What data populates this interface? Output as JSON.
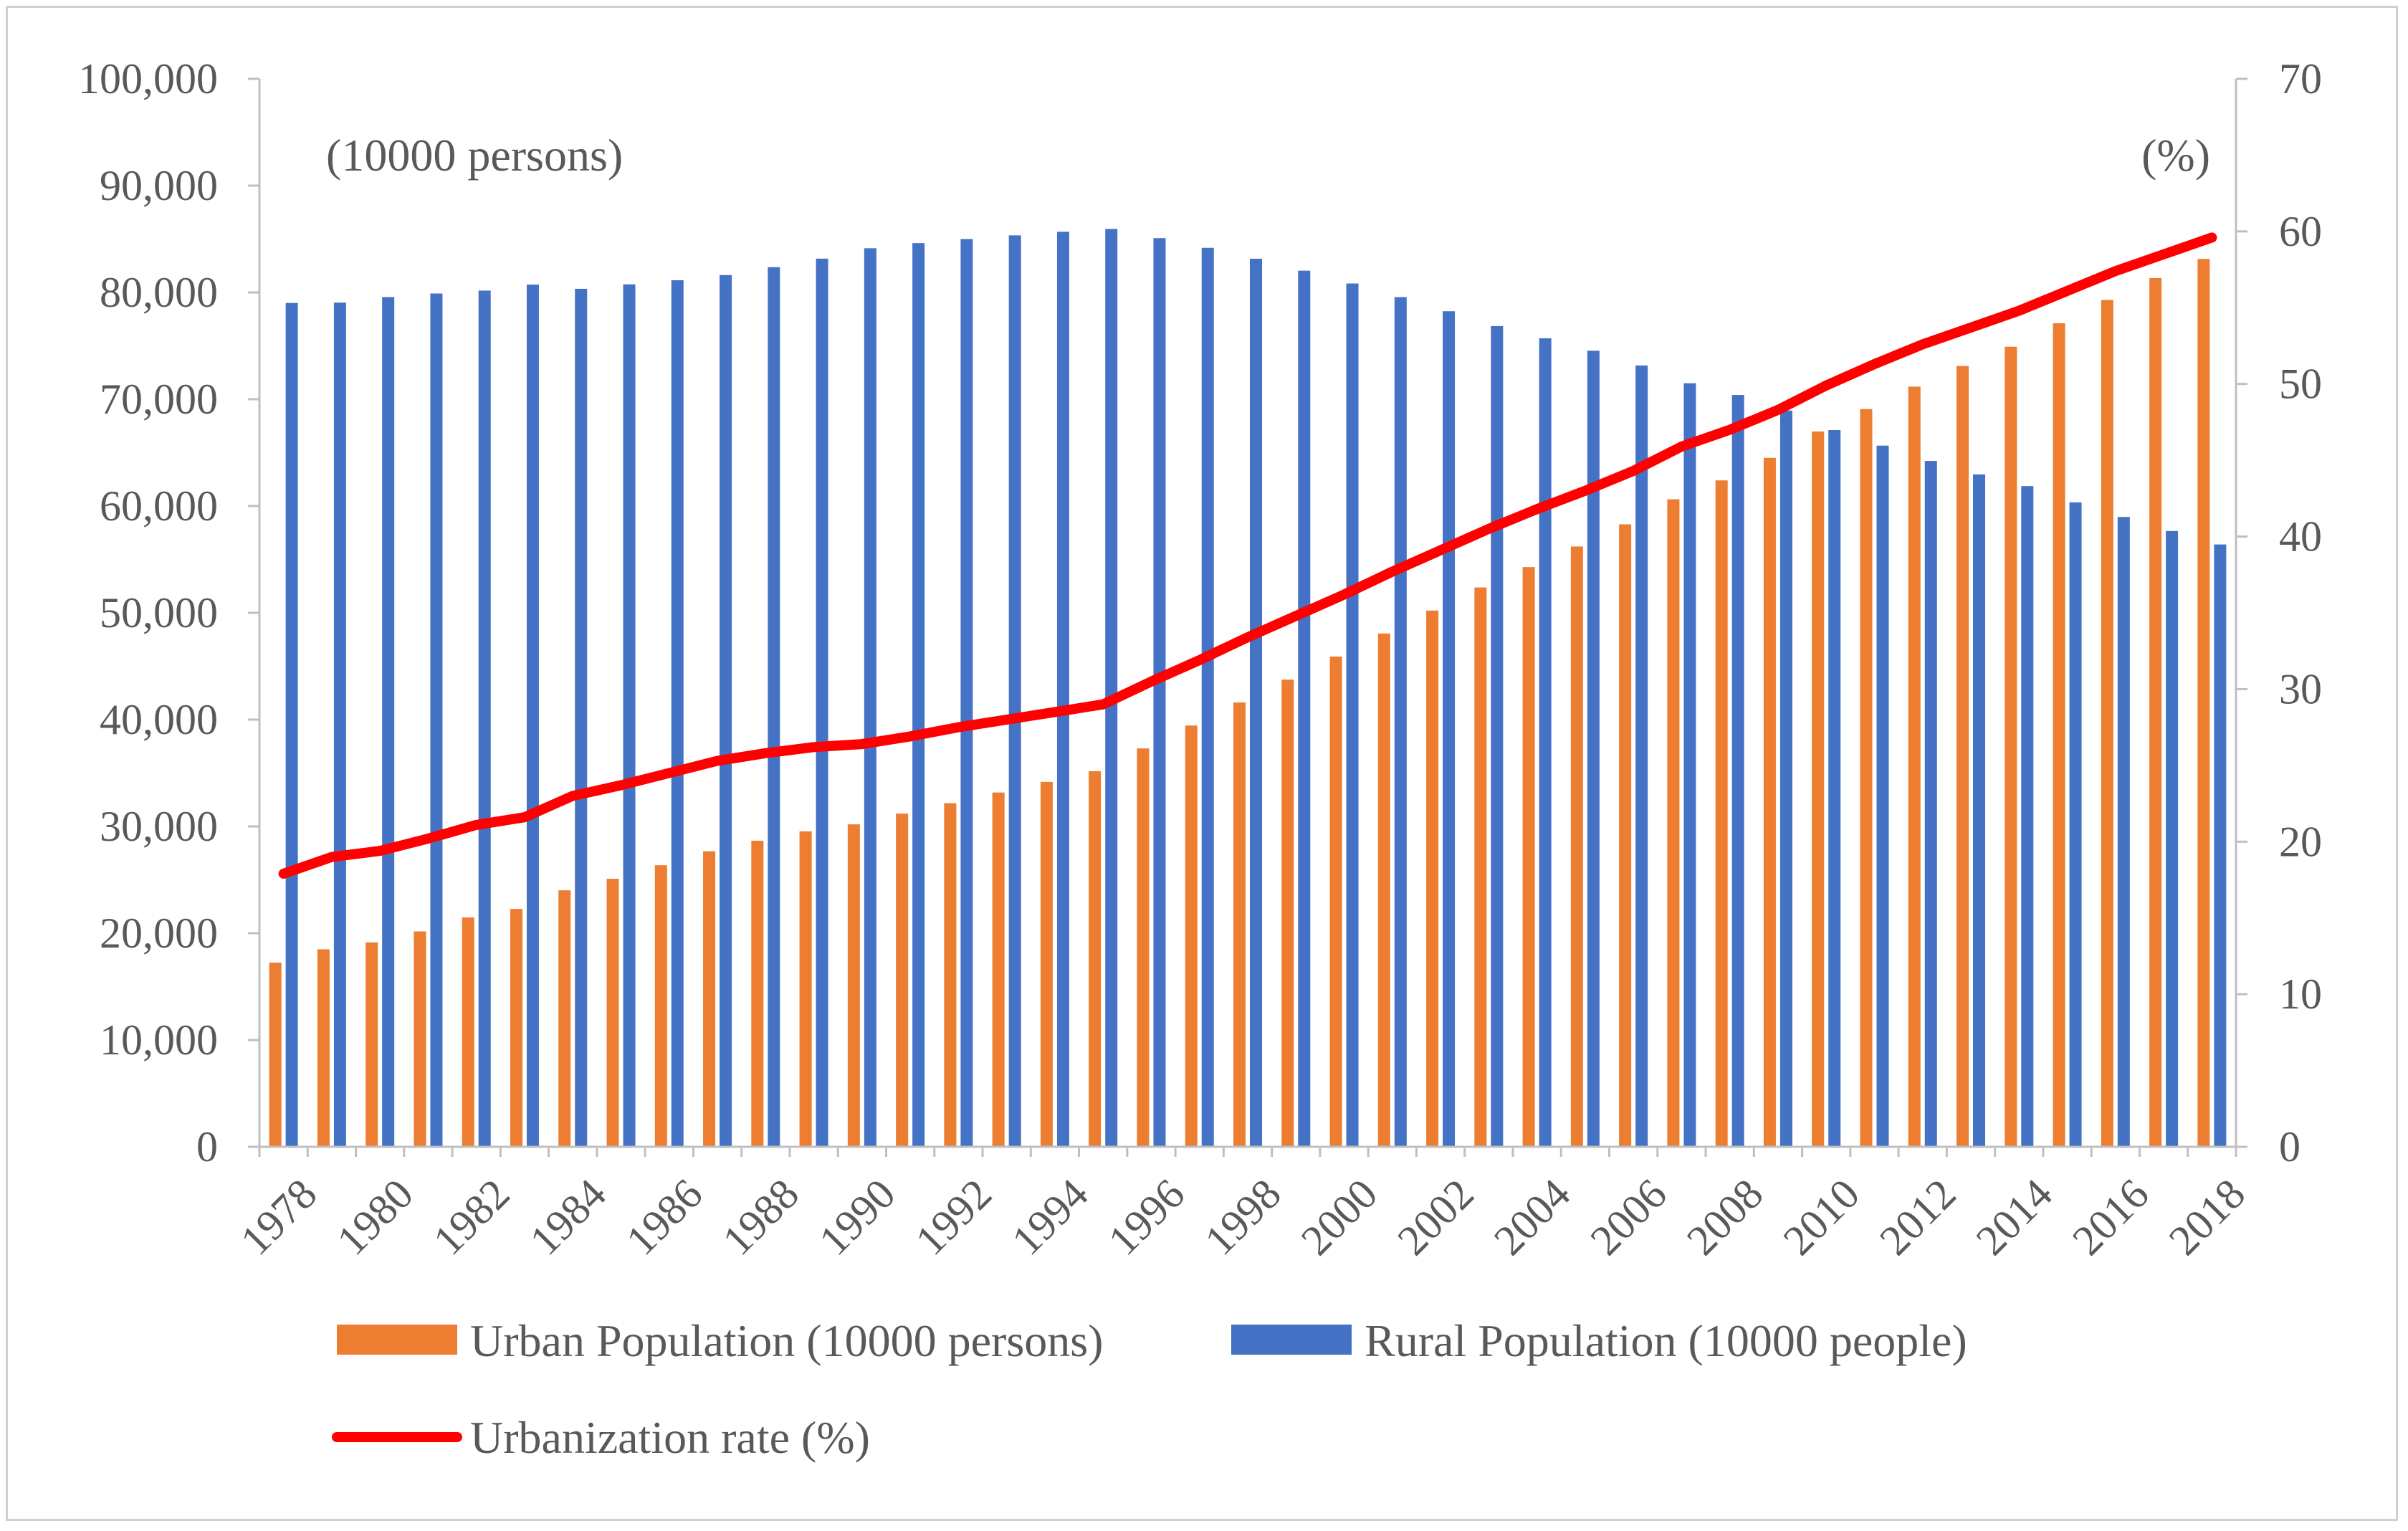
{
  "chart_data": {
    "type": "bar+line",
    "left_unit_label": "(10000 persons)",
    "right_unit_label": "(%)",
    "categories": [
      1978,
      1979,
      1980,
      1981,
      1982,
      1983,
      1984,
      1985,
      1986,
      1987,
      1988,
      1989,
      1990,
      1991,
      1992,
      1993,
      1994,
      1995,
      1996,
      1997,
      1998,
      1999,
      2000,
      2001,
      2002,
      2003,
      2004,
      2005,
      2006,
      2007,
      2008,
      2009,
      2010,
      2011,
      2012,
      2013,
      2014,
      2015,
      2016,
      2017,
      2018
    ],
    "x_tick_labels": [
      "1978",
      "1980",
      "1982",
      "1984",
      "1986",
      "1988",
      "1990",
      "1992",
      "1994",
      "1996",
      "1998",
      "2000",
      "2002",
      "2004",
      "2006",
      "2008",
      "2010",
      "2012",
      "2014",
      "2016",
      "2018"
    ],
    "y_left": {
      "min": 0,
      "max": 100000,
      "step": 10000,
      "tick_labels": [
        "0",
        "10,000",
        "20,000",
        "30,000",
        "40,000",
        "50,000",
        "60,000",
        "70,000",
        "80,000",
        "90,000",
        "100,000"
      ]
    },
    "y_right": {
      "min": 0,
      "max": 70,
      "step": 10,
      "tick_labels": [
        "0",
        "10",
        "20",
        "30",
        "40",
        "50",
        "60",
        "70"
      ]
    },
    "series": [
      {
        "name": "Urban Population (10000 persons)",
        "type": "bar",
        "axis": "left",
        "color": "#ED7D31",
        "values": [
          17245,
          18495,
          19140,
          20171,
          21480,
          22274,
          24017,
          25094,
          26366,
          27674,
          28661,
          29540,
          30195,
          31203,
          32175,
          33173,
          34169,
          35174,
          37304,
          39449,
          41608,
          43748,
          45906,
          48064,
          50212,
          52376,
          54283,
          56212,
          58288,
          60633,
          62403,
          64512,
          66978,
          69079,
          71182,
          73111,
          74916,
          77116,
          79298,
          81347,
          83137
        ]
      },
      {
        "name": "Rural Population (10000 people)",
        "type": "bar",
        "axis": "left",
        "color": "#4472C4",
        "values": [
          79014,
          79047,
          79565,
          79901,
          80174,
          80734,
          80340,
          80757,
          81141,
          81626,
          82365,
          83164,
          84138,
          84620,
          84996,
          85344,
          85681,
          85947,
          85085,
          84177,
          83153,
          82038,
          80837,
          79563,
          78241,
          76851,
          75705,
          74544,
          73160,
          71496,
          70399,
          68938,
          67113,
          65656,
          64222,
          62961,
          61866,
          60346,
          58973,
          57661,
          56401
        ]
      },
      {
        "name": "Urbanization rate (%)",
        "type": "line",
        "axis": "right",
        "color": "#FF0000",
        "values": [
          17.9,
          19.0,
          19.4,
          20.2,
          21.1,
          21.6,
          23.0,
          23.7,
          24.5,
          25.3,
          25.8,
          26.2,
          26.4,
          26.9,
          27.5,
          28.0,
          28.5,
          29.0,
          30.5,
          31.9,
          33.4,
          34.8,
          36.2,
          37.7,
          39.1,
          40.5,
          41.8,
          43.0,
          44.3,
          45.9,
          47.0,
          48.3,
          49.9,
          51.3,
          52.6,
          53.7,
          54.8,
          56.1,
          57.4,
          58.5,
          59.6
        ]
      }
    ],
    "legend": [
      {
        "label": "Urban Population (10000 persons)",
        "kind": "bar",
        "color": "#ED7D31"
      },
      {
        "label": "Rural Population (10000 people)",
        "kind": "bar",
        "color": "#4472C4"
      },
      {
        "label": "Urbanization rate (%)",
        "kind": "line",
        "color": "#FF0000"
      }
    ],
    "legend_position": "bottom",
    "grid": false
  }
}
